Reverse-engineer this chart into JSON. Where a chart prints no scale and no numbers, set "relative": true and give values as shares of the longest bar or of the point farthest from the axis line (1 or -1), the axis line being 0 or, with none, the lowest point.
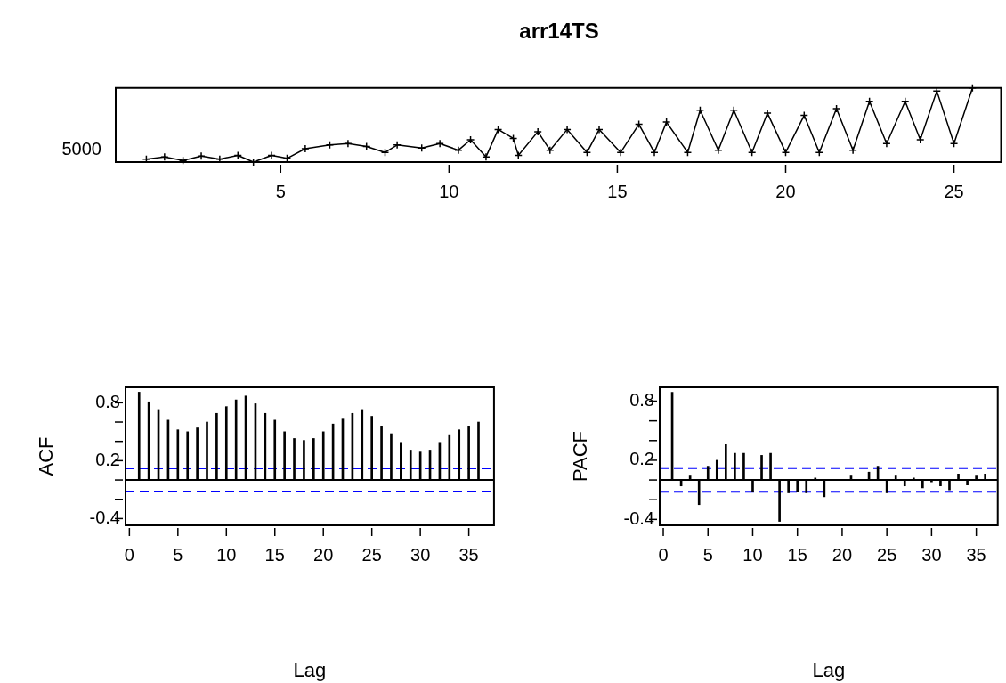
{
  "chart_data": [
    {
      "type": "line",
      "title": "arr14TS",
      "color": "#000000",
      "marker": "cross",
      "relative": true,
      "annotations": [
        "5000"
      ],
      "x": [
        1.01,
        1.55,
        2.1,
        2.64,
        3.19,
        3.73,
        4.19,
        4.73,
        5.19,
        5.73,
        6.46,
        7.0,
        7.55,
        8.1,
        8.46,
        9.19,
        9.73,
        10.28,
        10.64,
        11.1,
        11.46,
        11.91,
        12.06,
        12.64,
        13.0,
        13.51,
        14.1,
        14.46,
        15.1,
        15.64,
        16.1,
        16.46,
        17.09,
        17.46,
        18.0,
        18.46,
        19.0,
        19.46,
        20.0,
        20.55,
        21.0,
        21.51,
        22.0,
        22.49,
        23.0,
        23.55,
        24.0,
        24.49,
        25.0,
        25.55
      ],
      "values": [
        0.04,
        0.07,
        0.02,
        0.08,
        0.04,
        0.09,
        0,
        0.09,
        0.05,
        0.18,
        0.23,
        0.25,
        0.21,
        0.13,
        0.23,
        0.19,
        0.25,
        0.16,
        0.3,
        0.07,
        0.44,
        0.32,
        0.09,
        0.41,
        0.16,
        0.44,
        0.13,
        0.44,
        0.13,
        0.51,
        0.13,
        0.54,
        0.13,
        0.7,
        0.16,
        0.7,
        0.13,
        0.66,
        0.13,
        0.63,
        0.13,
        0.72,
        0.16,
        0.82,
        0.25,
        0.82,
        0.3,
        0.96,
        0.25,
        1
      ],
      "xlim": [
        0.1,
        26.4
      ],
      "xticks": [
        5,
        10,
        15,
        20,
        25
      ]
    },
    {
      "type": "bar",
      "xlabel": "Lag",
      "ylabel": "ACF",
      "color": "#000000",
      "x": [
        1,
        2,
        3,
        4,
        5,
        6,
        7,
        8,
        9,
        10,
        11,
        12,
        13,
        14,
        15,
        16,
        17,
        18,
        19,
        20,
        21,
        22,
        23,
        24,
        25,
        26,
        27,
        28,
        29,
        30,
        31,
        32,
        33,
        34,
        35,
        36
      ],
      "values": [
        0.91,
        0.81,
        0.73,
        0.62,
        0.52,
        0.5,
        0.54,
        0.6,
        0.69,
        0.76,
        0.83,
        0.87,
        0.79,
        0.69,
        0.62,
        0.5,
        0.43,
        0.41,
        0.43,
        0.5,
        0.58,
        0.64,
        0.69,
        0.73,
        0.66,
        0.56,
        0.48,
        0.39,
        0.31,
        0.29,
        0.31,
        0.39,
        0.47,
        0.52,
        0.56,
        0.6
      ],
      "xlim": [
        -0.4,
        37.6
      ],
      "xticks": [
        0,
        5,
        10,
        15,
        20,
        25,
        30,
        35
      ],
      "ylim": [
        -0.47,
        0.96
      ],
      "yticks": [
        {
          "value": -0.4,
          "label": "-0.4"
        },
        {
          "value": -0.2,
          "label": null
        },
        {
          "value": 0,
          "label": null
        },
        {
          "value": 0.2,
          "label": "0.2"
        },
        {
          "value": 0.4,
          "label": null
        },
        {
          "value": 0.6,
          "label": null
        },
        {
          "value": 0.8,
          "label": "0.8"
        }
      ],
      "ref_lines": [
        {
          "axis": "y",
          "value": 0,
          "color": "#000000",
          "line_style": "solid"
        },
        {
          "axis": "y",
          "value": 0.12,
          "color": "#0000ff",
          "line_style": "dashed"
        },
        {
          "axis": "y",
          "value": -0.12,
          "color": "#0000ff",
          "line_style": "dashed"
        }
      ]
    },
    {
      "type": "bar",
      "xlabel": "Lag",
      "ylabel": "PACF",
      "color": "#000000",
      "x": [
        1,
        2,
        3,
        4,
        5,
        6,
        7,
        8,
        9,
        10,
        11,
        12,
        13,
        14,
        15,
        16,
        17,
        18,
        19,
        20,
        21,
        22,
        23,
        24,
        25,
        26,
        27,
        28,
        29,
        30,
        31,
        32,
        33,
        34,
        35,
        36
      ],
      "values": [
        0.89,
        -0.06,
        0.05,
        -0.25,
        0.14,
        0.2,
        0.36,
        0.27,
        0.27,
        -0.12,
        0.25,
        0.27,
        -0.42,
        -0.13,
        -0.12,
        -0.13,
        0.02,
        -0.17,
        null,
        null,
        0.05,
        null,
        0.08,
        0.14,
        -0.13,
        0.05,
        -0.06,
        0.02,
        -0.08,
        -0.02,
        -0.06,
        -0.1,
        0.06,
        -0.05,
        0.05,
        0.06
      ],
      "xlim": [
        -0.4,
        37.4
      ],
      "xticks": [
        0,
        5,
        10,
        15,
        20,
        25,
        30,
        35
      ],
      "ylim": [
        -0.46,
        0.94
      ],
      "yticks": [
        {
          "value": -0.4,
          "label": "-0.4"
        },
        {
          "value": -0.2,
          "label": null
        },
        {
          "value": 0,
          "label": null
        },
        {
          "value": 0.2,
          "label": "0.2"
        },
        {
          "value": 0.4,
          "label": null
        },
        {
          "value": 0.6,
          "label": null
        },
        {
          "value": 0.8,
          "label": "0.8"
        }
      ],
      "ref_lines": [
        {
          "axis": "y",
          "value": 0,
          "color": "#000000",
          "line_style": "solid"
        },
        {
          "axis": "y",
          "value": 0.12,
          "color": "#0000ff",
          "line_style": "dashed"
        },
        {
          "axis": "y",
          "value": -0.12,
          "color": "#0000ff",
          "line_style": "dashed"
        }
      ]
    }
  ]
}
